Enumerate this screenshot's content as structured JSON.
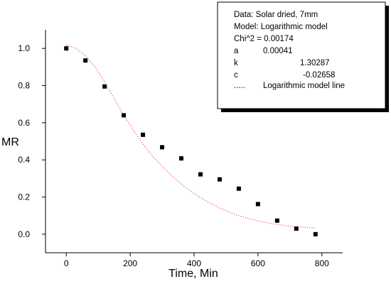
{
  "chart_data": {
    "type": "scatter",
    "xlabel": "Time, Min",
    "ylabel": "MR",
    "xlim": [
      -65,
      865
    ],
    "ylim": [
      -0.1,
      1.1
    ],
    "xticks": [
      0,
      200,
      400,
      600,
      800
    ],
    "yticks": [
      0.0,
      0.2,
      0.4,
      0.6,
      0.8,
      1.0
    ],
    "xtick_labels": [
      "0",
      "200",
      "400",
      "600",
      "800"
    ],
    "ytick_labels": [
      "0.0",
      "0.2",
      "0.4",
      "0.6",
      "0.8",
      "1.0"
    ],
    "grid": false,
    "legend_position": "top-right",
    "series": [
      {
        "name": "Data: Solar dried, 7mm",
        "style": "markers",
        "marker": "square",
        "color": "#000000",
        "x": [
          0,
          60,
          120,
          180,
          240,
          300,
          360,
          420,
          480,
          540,
          600,
          660,
          720,
          780
        ],
        "y": [
          1.0,
          0.935,
          0.795,
          0.64,
          0.535,
          0.468,
          0.408,
          0.322,
          0.295,
          0.245,
          0.162,
          0.073,
          0.03,
          0.0
        ]
      },
      {
        "name": "Logarithmic model line",
        "style": "dotted-line",
        "color": "#e8333a",
        "x": [
          0,
          30,
          60,
          90,
          120,
          150,
          180,
          210,
          240,
          270,
          300,
          330,
          360,
          390,
          420,
          450,
          480,
          510,
          540,
          570,
          600,
          630,
          660,
          690,
          720,
          750,
          780
        ],
        "y": [
          1.02,
          1.0,
          0.96,
          0.9,
          0.82,
          0.73,
          0.64,
          0.56,
          0.485,
          0.42,
          0.365,
          0.315,
          0.27,
          0.23,
          0.197,
          0.167,
          0.141,
          0.119,
          0.1,
          0.085,
          0.072,
          0.061,
          0.052,
          0.045,
          0.04,
          0.036,
          0.033
        ]
      }
    ],
    "legend": {
      "lines": [
        "Data: Solar dried, 7mm",
        "Model: Logarithmic model",
        "Chi^2 = 0.00174"
      ],
      "params": [
        {
          "name": "a",
          "value": "0.00041"
        },
        {
          "name": "k",
          "value": "1.30287"
        },
        {
          "name": "c",
          "value": "-0.02658"
        }
      ],
      "line_marker": ".....",
      "line_label": "Logarithmic model line"
    }
  }
}
